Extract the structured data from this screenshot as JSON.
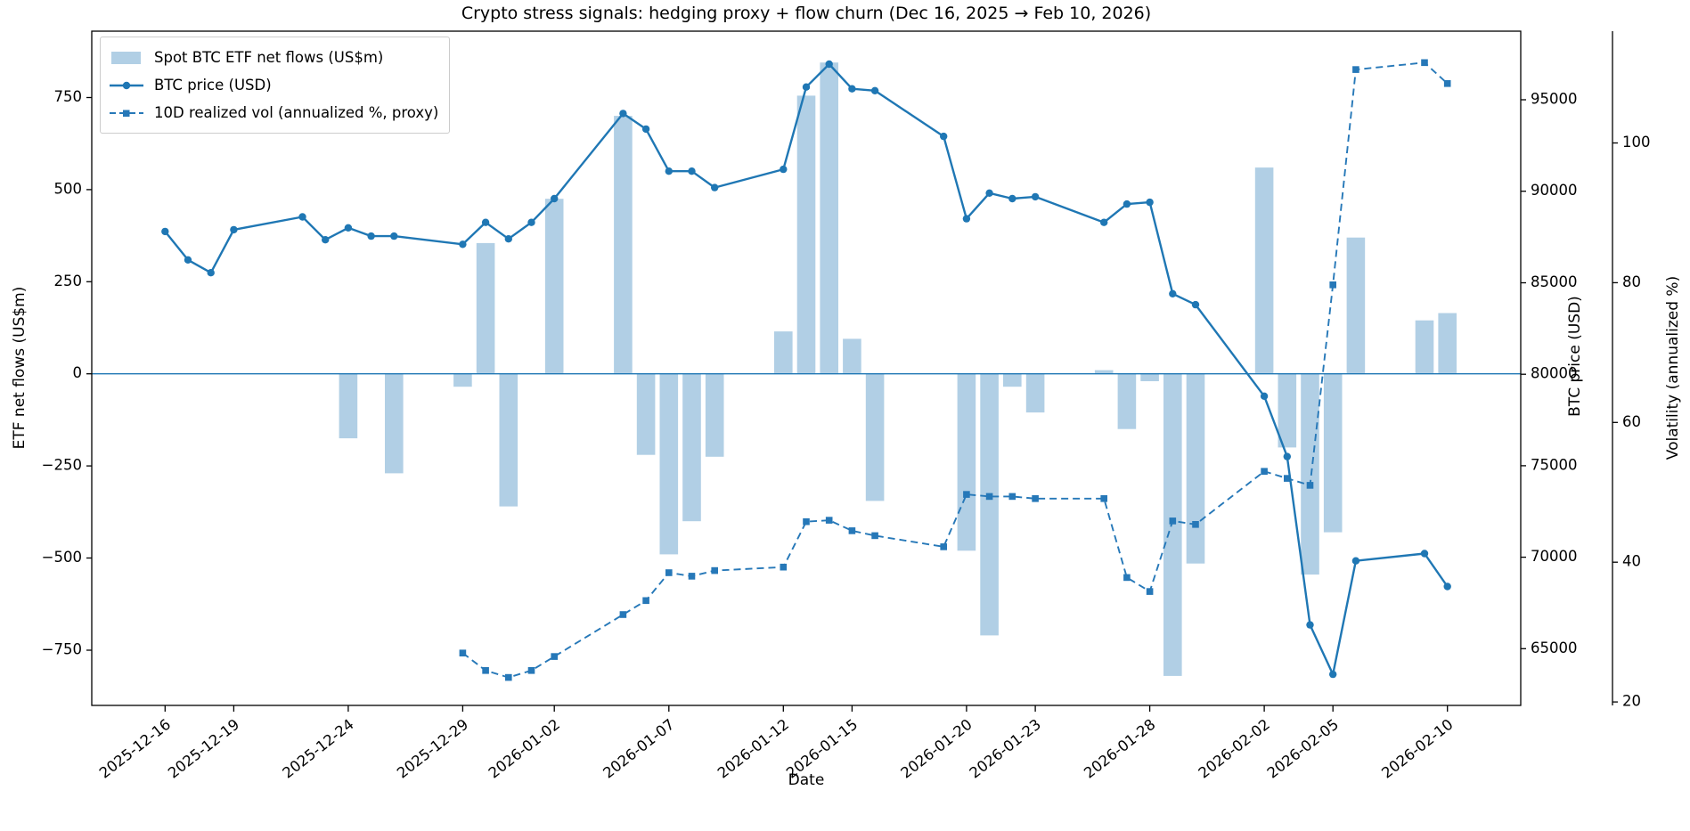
{
  "figure": {
    "title": "Crypto stress signals: hedging proxy + flow churn (Dec 16, 2025 → Feb 10, 2026)",
    "background": "#ffffff"
  },
  "chart_data": {
    "type": "combo-bar-line-line",
    "title": "Crypto stress signals: hedging proxy + flow churn (Dec 16, 2025 → Feb 10, 2026)",
    "xlabel": "Date",
    "x_start": "2025-12-16",
    "x_end": "2026-02-10",
    "xlim_days": [
      -3.2,
      59.2
    ],
    "grid": false,
    "legend_position": "upper left",
    "colors": {
      "bar": "#b1cfe5",
      "price_line": "#1f77b4",
      "vol_line": "#2678b8",
      "zero_line": "#1f77b4",
      "spine": "#000000",
      "text": "#000000"
    },
    "axes": {
      "flows": {
        "label": "ETF net flows (US$m)",
        "side": "left",
        "lim": [
          -900,
          930
        ],
        "ticks": [
          -750,
          -500,
          -250,
          0,
          250,
          500,
          750
        ]
      },
      "price": {
        "label": "BTC price (USD)",
        "side": "right",
        "lim": [
          61900,
          98750
        ],
        "ticks": [
          65000,
          70000,
          75000,
          80000,
          85000,
          90000,
          95000
        ]
      },
      "vol": {
        "label": "Volatility (annualized %)",
        "side": "far-right",
        "lim": [
          19.5,
          116
        ],
        "ticks": [
          20,
          40,
          60,
          80,
          100
        ]
      }
    },
    "x_tick_dates": [
      "2025-12-16",
      "2025-12-19",
      "2025-12-24",
      "2025-12-29",
      "2026-01-02",
      "2026-01-07",
      "2026-01-12",
      "2026-01-15",
      "2026-01-20",
      "2026-01-23",
      "2026-01-28",
      "2026-02-02",
      "2026-02-05",
      "2026-02-10"
    ],
    "zero_line_flows": 0,
    "series": [
      {
        "name": "Spot BTC ETF net flows (US$m)",
        "type": "bar",
        "axis": "flows",
        "dates": [
          "2025-12-24",
          "2025-12-26",
          "2025-12-29",
          "2025-12-30",
          "2025-12-31",
          "2026-01-02",
          "2026-01-05",
          "2026-01-06",
          "2026-01-07",
          "2026-01-08",
          "2026-01-09",
          "2026-01-12",
          "2026-01-13",
          "2026-01-14",
          "2026-01-15",
          "2026-01-16",
          "2026-01-20",
          "2026-01-21",
          "2026-01-22",
          "2026-01-23",
          "2026-01-26",
          "2026-01-27",
          "2026-01-28",
          "2026-01-29",
          "2026-01-30",
          "2026-02-02",
          "2026-02-03",
          "2026-02-04",
          "2026-02-05",
          "2026-02-06",
          "2026-02-09",
          "2026-02-10"
        ],
        "values": [
          -175,
          -270,
          -35,
          355,
          -360,
          475,
          700,
          -220,
          -490,
          -400,
          -225,
          115,
          755,
          845,
          95,
          -345,
          -480,
          -710,
          -35,
          -105,
          10,
          -150,
          -20,
          -820,
          -515,
          560,
          -200,
          -545,
          -430,
          370,
          145,
          165
        ]
      },
      {
        "name": "BTC price (USD)",
        "type": "line",
        "marker": "circle",
        "axis": "price",
        "dates": [
          "2025-12-16",
          "2025-12-17",
          "2025-12-18",
          "2025-12-19",
          "2025-12-22",
          "2025-12-23",
          "2025-12-24",
          "2025-12-25",
          "2025-12-26",
          "2025-12-29",
          "2025-12-30",
          "2025-12-31",
          "2026-01-01",
          "2026-01-02",
          "2026-01-05",
          "2026-01-06",
          "2026-01-07",
          "2026-01-08",
          "2026-01-09",
          "2026-01-12",
          "2026-01-13",
          "2026-01-14",
          "2026-01-15",
          "2026-01-16",
          "2026-01-19",
          "2026-01-20",
          "2026-01-21",
          "2026-01-22",
          "2026-01-23",
          "2026-01-26",
          "2026-01-27",
          "2026-01-28",
          "2026-01-29",
          "2026-01-30",
          "2026-02-02",
          "2026-02-03",
          "2026-02-04",
          "2026-02-05",
          "2026-02-06",
          "2026-02-09",
          "2026-02-10"
        ],
        "values": [
          87800,
          86250,
          85550,
          87900,
          88600,
          87350,
          88000,
          87550,
          87550,
          87100,
          88300,
          87400,
          88300,
          89600,
          94250,
          93400,
          91100,
          91100,
          90200,
          91200,
          95700,
          96950,
          95600,
          95500,
          93000,
          88500,
          89900,
          89600,
          89700,
          88300,
          89300,
          89400,
          84400,
          83800,
          78800,
          75500,
          66300,
          63600,
          69800,
          70200,
          68400
        ]
      },
      {
        "name": "10D realized vol (annualized %, proxy)",
        "type": "line",
        "linestyle": "dashed",
        "marker": "square",
        "axis": "vol",
        "dates": [
          "2025-12-29",
          "2025-12-30",
          "2025-12-31",
          "2026-01-01",
          "2026-01-02",
          "2026-01-05",
          "2026-01-06",
          "2026-01-07",
          "2026-01-08",
          "2026-01-09",
          "2026-01-12",
          "2026-01-13",
          "2026-01-14",
          "2026-01-15",
          "2026-01-16",
          "2026-01-19",
          "2026-01-20",
          "2026-01-21",
          "2026-01-22",
          "2026-01-23",
          "2026-01-26",
          "2026-01-27",
          "2026-01-28",
          "2026-01-29",
          "2026-01-30",
          "2026-02-02",
          "2026-02-03",
          "2026-02-04",
          "2026-02-05",
          "2026-02-06",
          "2026-02-09",
          "2026-02-10"
        ],
        "values": [
          27.0,
          24.5,
          23.5,
          24.5,
          26.5,
          32.5,
          34.5,
          38.5,
          38.0,
          38.8,
          39.3,
          45.8,
          46.0,
          44.5,
          43.8,
          42.2,
          49.7,
          49.4,
          49.4,
          49.1,
          49.1,
          37.8,
          35.8,
          45.9,
          45.4,
          53.0,
          52.0,
          51.0,
          79.7,
          110.5,
          111.5,
          108.5
        ]
      }
    ]
  }
}
